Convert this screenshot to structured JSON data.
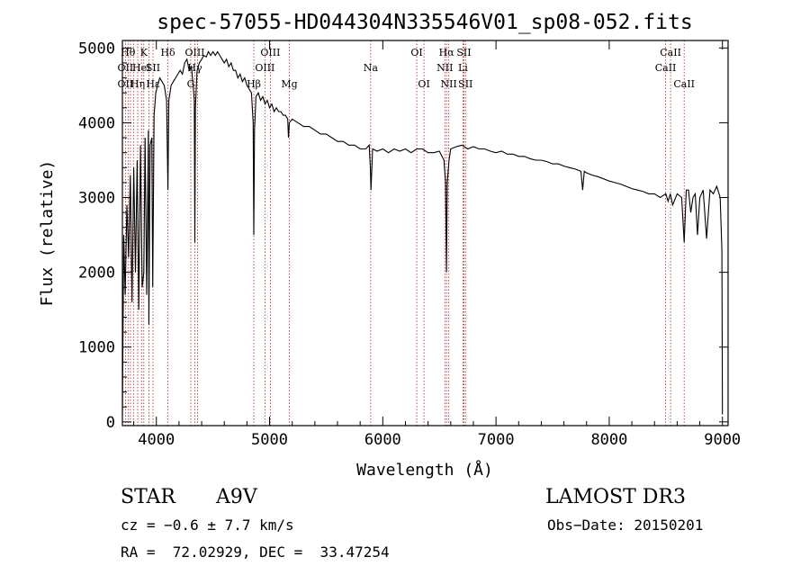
{
  "chart_data": {
    "type": "line",
    "title": "spec-57055-HD044304N335546V01_sp08-052.fits",
    "xlabel": "Wavelength (Å)",
    "ylabel": "Flux (relative)",
    "xlim": [
      3700,
      9050
    ],
    "ylim": [
      -50,
      5100
    ],
    "xticks": [
      4000,
      5000,
      6000,
      7000,
      8000,
      9000
    ],
    "yticks": [
      0,
      1000,
      2000,
      3000,
      4000,
      5000
    ],
    "grid": false,
    "series": [
      {
        "x": [
          3700,
          3712,
          3725,
          3740,
          3755,
          3770,
          3785,
          3800,
          3815,
          3830,
          3845,
          3860,
          3875,
          3889,
          3900,
          3915,
          3930,
          3934,
          3945,
          3960,
          3968,
          3980,
          3995,
          4010,
          4030,
          4050,
          4070,
          4090,
          4102,
          4110,
          4130,
          4150,
          4170,
          4190,
          4210,
          4230,
          4250,
          4270,
          4290,
          4310,
          4325,
          4335,
          4340,
          4345,
          4360,
          4380,
          4400,
          4420,
          4440,
          4460,
          4480,
          4500,
          4520,
          4540,
          4560,
          4580,
          4600,
          4620,
          4640,
          4660,
          4680,
          4700,
          4720,
          4740,
          4760,
          4780,
          4800,
          4820,
          4840,
          4855,
          4861,
          4867,
          4880,
          4900,
          4920,
          4940,
          4960,
          4980,
          5000,
          5020,
          5040,
          5060,
          5080,
          5100,
          5120,
          5140,
          5160,
          5167,
          5175,
          5200,
          5250,
          5300,
          5350,
          5400,
          5450,
          5500,
          5550,
          5600,
          5650,
          5700,
          5750,
          5800,
          5850,
          5880,
          5890,
          5896,
          5910,
          5950,
          6000,
          6050,
          6100,
          6150,
          6200,
          6250,
          6300,
          6350,
          6400,
          6450,
          6500,
          6540,
          6555,
          6563,
          6570,
          6585,
          6600,
          6650,
          6700,
          6750,
          6800,
          6850,
          6900,
          6950,
          7000,
          7050,
          7100,
          7150,
          7200,
          7250,
          7300,
          7350,
          7400,
          7450,
          7500,
          7550,
          7600,
          7650,
          7700,
          7750,
          7765,
          7780,
          7800,
          7850,
          7900,
          7950,
          8000,
          8050,
          8100,
          8150,
          8200,
          8250,
          8300,
          8350,
          8400,
          8450,
          8500,
          8520,
          8540,
          8560,
          8600,
          8640,
          8662,
          8680,
          8700,
          8720,
          8740,
          8760,
          8780,
          8800,
          8830,
          8860,
          8890,
          8920,
          8950,
          8980,
          8995,
          9000
        ],
        "values": [
          100,
          2500,
          1700,
          2900,
          2200,
          3300,
          1600,
          3400,
          2000,
          3500,
          1500,
          3700,
          1800,
          2000,
          3800,
          1700,
          3900,
          1300,
          3700,
          3800,
          1800,
          4100,
          4400,
          4500,
          4600,
          4550,
          4500,
          4300,
          3100,
          4300,
          4500,
          4550,
          4600,
          4650,
          4700,
          4650,
          4800,
          4850,
          4700,
          4750,
          4500,
          4300,
          2400,
          4200,
          4700,
          4800,
          4850,
          4900,
          4880,
          4950,
          4900,
          4950,
          4900,
          4950,
          4900,
          4850,
          4800,
          4850,
          4750,
          4800,
          4700,
          4700,
          4600,
          4650,
          4550,
          4600,
          4500,
          4450,
          4400,
          4000,
          2500,
          3900,
          4350,
          4400,
          4300,
          4350,
          4250,
          4300,
          4200,
          4250,
          4150,
          4200,
          4150,
          4150,
          4100,
          4100,
          4050,
          3800,
          4000,
          4050,
          4000,
          3950,
          3950,
          3900,
          3850,
          3850,
          3800,
          3750,
          3750,
          3700,
          3700,
          3650,
          3650,
          3700,
          3400,
          3100,
          3650,
          3620,
          3650,
          3600,
          3650,
          3620,
          3650,
          3600,
          3650,
          3650,
          3600,
          3600,
          3620,
          3500,
          3200,
          2000,
          3200,
          3500,
          3650,
          3680,
          3700,
          3650,
          3680,
          3650,
          3650,
          3620,
          3600,
          3620,
          3580,
          3580,
          3550,
          3550,
          3520,
          3500,
          3500,
          3480,
          3450,
          3450,
          3420,
          3400,
          3380,
          3350,
          3100,
          3350,
          3330,
          3300,
          3280,
          3250,
          3220,
          3200,
          3180,
          3150,
          3120,
          3100,
          3080,
          3050,
          3050,
          3000,
          3050,
          2950,
          3050,
          2900,
          3050,
          3000,
          2400,
          3100,
          3100,
          2800,
          3000,
          3050,
          2500,
          3000,
          3100,
          2450,
          3100,
          3050,
          3150,
          3000,
          2300,
          100
        ]
      }
    ],
    "line_labels": [
      {
        "wl": 3750,
        "row": 0,
        "text": "Hθ"
      },
      {
        "wl": 3890,
        "row": 0,
        "text": "K"
      },
      {
        "wl": 4102,
        "row": 0,
        "text": "Hδ"
      },
      {
        "wl": 4340,
        "row": 0,
        "text": "OIII"
      },
      {
        "wl": 5007,
        "row": 0,
        "text": "OIII"
      },
      {
        "wl": 6300,
        "row": 0,
        "text": "OI"
      },
      {
        "wl": 6563,
        "row": 0,
        "text": "Hα"
      },
      {
        "wl": 6717,
        "row": 0,
        "text": "SII"
      },
      {
        "wl": 8542,
        "row": 0,
        "text": "CaII"
      },
      {
        "wl": 3727,
        "row": 1,
        "text": "OII"
      },
      {
        "wl": 3869,
        "row": 1,
        "text": "HeI"
      },
      {
        "wl": 3970,
        "row": 1,
        "text": "SII"
      },
      {
        "wl": 4340,
        "row": 1,
        "text": "Hγ"
      },
      {
        "wl": 4959,
        "row": 1,
        "text": "OIII"
      },
      {
        "wl": 5893,
        "row": 1,
        "text": "Na"
      },
      {
        "wl": 6548,
        "row": 1,
        "text": "NII"
      },
      {
        "wl": 6708,
        "row": 1,
        "text": "Li"
      },
      {
        "wl": 8498,
        "row": 1,
        "text": "CaII"
      },
      {
        "wl": 3727,
        "row": 2,
        "text": "OII"
      },
      {
        "wl": 3835,
        "row": 2,
        "text": "Hη"
      },
      {
        "wl": 3970,
        "row": 2,
        "text": "Hε"
      },
      {
        "wl": 4304,
        "row": 2,
        "text": "G"
      },
      {
        "wl": 4861,
        "row": 2,
        "text": "Hβ"
      },
      {
        "wl": 5175,
        "row": 2,
        "text": "Mg"
      },
      {
        "wl": 6364,
        "row": 2,
        "text": "OI"
      },
      {
        "wl": 6583,
        "row": 2,
        "text": "NII"
      },
      {
        "wl": 6731,
        "row": 2,
        "text": "SII"
      },
      {
        "wl": 8662,
        "row": 2,
        "text": "CaII"
      }
    ],
    "marker_lines": [
      3727,
      3750,
      3771,
      3798,
      3835,
      3869,
      3889,
      3934,
      3970,
      4102,
      4304,
      4340,
      4363,
      4861,
      4959,
      5007,
      5175,
      5893,
      6300,
      6364,
      6548,
      6563,
      6583,
      6708,
      6717,
      6731,
      8498,
      8542,
      8662
    ],
    "colors": {
      "spectrum": "#000000",
      "markers": "#b22222",
      "axis": "#000000"
    }
  },
  "info": {
    "object_class": "STAR",
    "subclass": "A9V",
    "survey": "LAMOST DR3",
    "cz": "cz = −0.6 ± 7.7 km/s",
    "obs_date": "Obs−Date: 20150201",
    "coords": "RA =  72.02929, DEC =  33.47254"
  }
}
